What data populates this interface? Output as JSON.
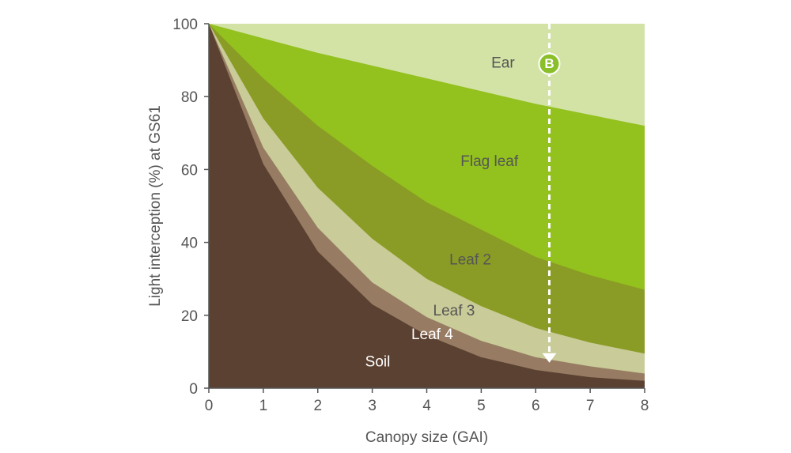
{
  "colors": {
    "ear": "#d3e3a6",
    "flag_leaf": "#93c11e",
    "leaf2": "#8a9c25",
    "leaf3": "#c9cb98",
    "leaf4": "#977c63",
    "soil": "#5b4131",
    "axis": "#555555",
    "marker": "#8bbf2a",
    "arrow": "#ffffff"
  },
  "chart_data": {
    "type": "area",
    "stacked": true,
    "xlabel": "Canopy size (GAI)",
    "ylabel": "Light interception (%) at GS61",
    "xlim": [
      0,
      8
    ],
    "ylim": [
      0,
      100
    ],
    "x_ticks": [
      "0",
      "1",
      "2",
      "3",
      "4",
      "5",
      "6",
      "7",
      "8"
    ],
    "y_ticks": [
      "0",
      "20",
      "40",
      "60",
      "80",
      "100"
    ],
    "x": [
      0,
      1,
      2,
      3,
      4,
      5,
      6,
      7,
      8
    ],
    "boundaries": [
      {
        "name": "Ear",
        "upper": [
          100,
          100,
          100,
          100,
          100,
          100,
          100,
          100,
          100
        ]
      },
      {
        "name": "Flag leaf",
        "upper": [
          100,
          96,
          92,
          88.5,
          85,
          81.5,
          78,
          75,
          72
        ]
      },
      {
        "name": "Leaf 2",
        "upper": [
          100,
          85,
          72,
          61,
          51,
          43.5,
          36,
          31,
          27
        ]
      },
      {
        "name": "Leaf 3",
        "upper": [
          100,
          74,
          55,
          41,
          30,
          22.5,
          16.5,
          12.5,
          9.5
        ]
      },
      {
        "name": "Leaf 4",
        "upper": [
          100,
          66,
          44,
          29,
          19.5,
          13,
          8.5,
          6,
          4
        ]
      },
      {
        "name": "Soil",
        "upper": [
          100,
          61.5,
          37.5,
          23,
          14.5,
          8.5,
          5,
          3,
          2
        ]
      }
    ],
    "region_labels": [
      {
        "text": "Ear",
        "x": 5.4,
        "y": 89
      },
      {
        "text": "Flag leaf",
        "x": 5.15,
        "y": 62
      },
      {
        "text": "Leaf 2",
        "x": 4.8,
        "y": 35
      },
      {
        "text": "Leaf 3",
        "x": 4.5,
        "y": 21
      },
      {
        "text": "Leaf 4",
        "x": 4.1,
        "y": 14.5
      },
      {
        "text": "Soil",
        "x": 3.1,
        "y": 7
      }
    ],
    "annotation": {
      "marker_text": "B",
      "arrow_x": 6.25,
      "arrow_from_y": 100,
      "arrow_to_y": 7,
      "marker_y": 89
    }
  }
}
